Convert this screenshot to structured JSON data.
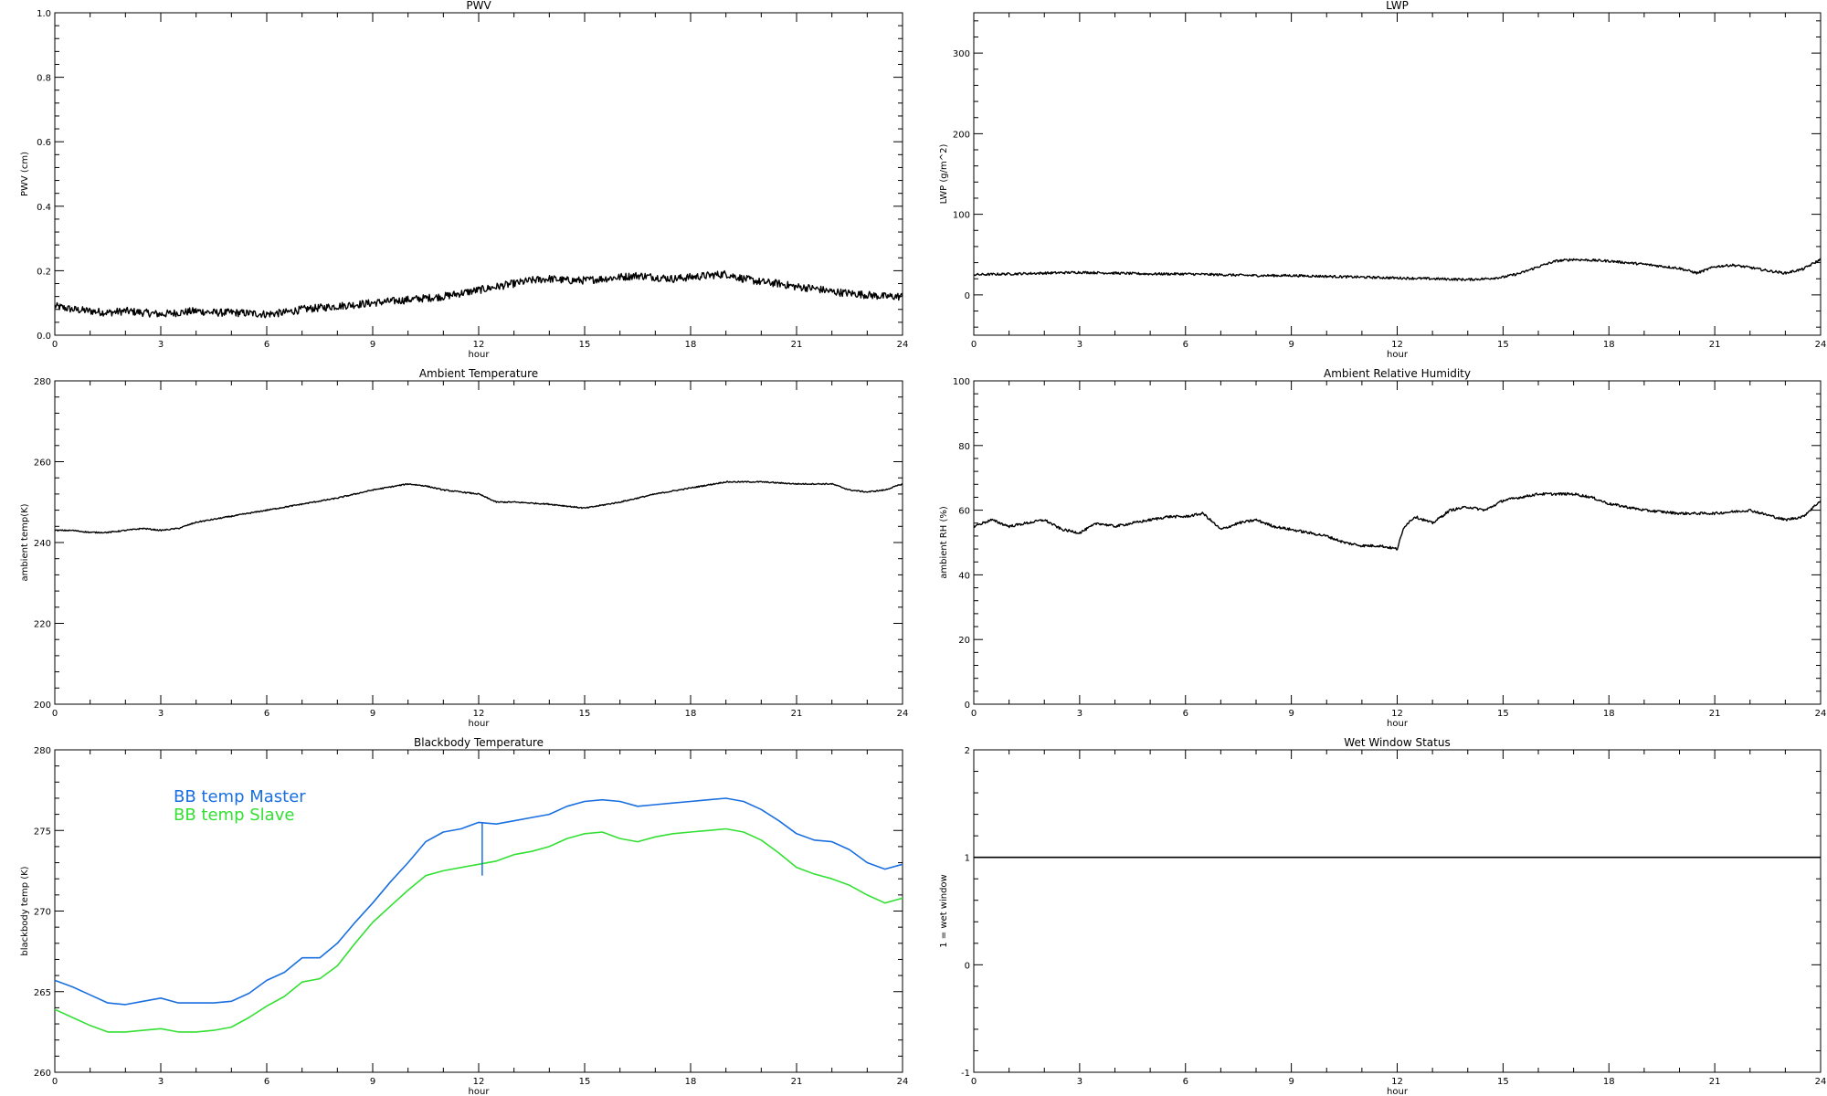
{
  "colors": {
    "axis": "#000000",
    "data": "#000000",
    "master": "#1a6fe0",
    "slave": "#33e033"
  },
  "chart_data": [
    {
      "type": "scatter",
      "title": "PWV",
      "xlabel": "hour",
      "ylabel": "PWV (cm)",
      "xlim": [
        0,
        24
      ],
      "ylim": [
        0,
        1
      ],
      "xticks": [
        0,
        3,
        6,
        9,
        12,
        15,
        18,
        21,
        24
      ],
      "yticks": [
        "0.0",
        "0.2",
        "0.4",
        "0.6",
        "0.8",
        "1.0"
      ],
      "noise": 0.012,
      "series": [
        {
          "color_key": "data",
          "x": [
            0,
            0.5,
            1,
            1.5,
            2,
            2.5,
            3,
            3.5,
            4,
            4.5,
            5,
            5.5,
            6,
            6.5,
            7,
            7.5,
            8,
            8.5,
            9,
            9.5,
            10,
            10.5,
            11,
            11.5,
            12,
            12.5,
            13,
            13.5,
            14,
            14.5,
            15,
            15.5,
            16,
            16.5,
            17,
            17.5,
            18,
            18.5,
            19,
            19.5,
            20,
            20.5,
            21,
            21.5,
            22,
            22.5,
            23,
            23.5,
            24
          ],
          "y": [
            0.09,
            0.08,
            0.075,
            0.07,
            0.075,
            0.07,
            0.065,
            0.07,
            0.075,
            0.07,
            0.07,
            0.068,
            0.065,
            0.07,
            0.08,
            0.085,
            0.09,
            0.095,
            0.1,
            0.105,
            0.11,
            0.115,
            0.12,
            0.13,
            0.14,
            0.15,
            0.16,
            0.17,
            0.175,
            0.17,
            0.17,
            0.175,
            0.18,
            0.185,
            0.18,
            0.175,
            0.18,
            0.185,
            0.19,
            0.175,
            0.165,
            0.16,
            0.15,
            0.145,
            0.135,
            0.13,
            0.125,
            0.12,
            0.12
          ]
        }
      ]
    },
    {
      "type": "scatter",
      "title": "LWP",
      "xlabel": "hour",
      "ylabel": "LWP (g/m^2)",
      "xlim": [
        0,
        24
      ],
      "ylim": [
        -50,
        350
      ],
      "xticks": [
        0,
        3,
        6,
        9,
        12,
        15,
        18,
        21,
        24
      ],
      "yticks": [
        "0",
        "100",
        "200",
        "300"
      ],
      "noise": 1.5,
      "series": [
        {
          "color_key": "data",
          "x": [
            0,
            1,
            2,
            3,
            4,
            5,
            6,
            7,
            8,
            9,
            10,
            11,
            12,
            13,
            14,
            14.5,
            15,
            15.5,
            16,
            16.5,
            17,
            18,
            19,
            20,
            20.5,
            21,
            21.5,
            22,
            22.5,
            23,
            23.5,
            24
          ],
          "y": [
            25,
            26,
            27,
            28,
            27,
            26,
            26,
            25,
            24,
            24,
            23,
            22,
            21,
            20,
            19,
            20,
            22,
            27,
            35,
            42,
            44,
            42,
            38,
            33,
            27,
            35,
            37,
            34,
            30,
            27,
            32,
            44
          ]
        }
      ]
    },
    {
      "type": "line",
      "title": "Ambient Temperature",
      "xlabel": "hour",
      "ylabel": "ambient temp(K)",
      "xlim": [
        0,
        24
      ],
      "ylim": [
        200,
        280
      ],
      "xticks": [
        0,
        3,
        6,
        9,
        12,
        15,
        18,
        21,
        24
      ],
      "yticks": [
        "200",
        "220",
        "240",
        "260",
        "280"
      ],
      "noise": 0.15,
      "series": [
        {
          "color_key": "data",
          "x": [
            0,
            0.5,
            1,
            1.5,
            2,
            2.5,
            3,
            3.5,
            4,
            5,
            6,
            7,
            8,
            9,
            10,
            10.5,
            11,
            11.5,
            12,
            12.5,
            13,
            14,
            15,
            16,
            17,
            18,
            19,
            20,
            21,
            22,
            22.5,
            23,
            23.5,
            24
          ],
          "y": [
            243,
            243,
            242.5,
            242.5,
            243,
            243.5,
            243,
            243.5,
            245,
            246.5,
            248,
            249.5,
            251,
            253,
            254.5,
            254,
            253,
            252.5,
            252,
            250,
            250,
            249.5,
            248.5,
            250,
            252,
            253.5,
            255,
            255,
            254.5,
            254.5,
            253,
            252.5,
            253,
            254.5
          ]
        }
      ]
    },
    {
      "type": "line",
      "title": "Ambient Relative Humidity",
      "xlabel": "hour",
      "ylabel": "ambient RH (%)",
      "xlim": [
        0,
        24
      ],
      "ylim": [
        0,
        100
      ],
      "xticks": [
        0,
        3,
        6,
        9,
        12,
        15,
        18,
        21,
        24
      ],
      "yticks": [
        "0",
        "20",
        "40",
        "60",
        "80",
        "100"
      ],
      "noise": 0.4,
      "series": [
        {
          "color_key": "data",
          "x": [
            0,
            0.5,
            1,
            1.5,
            2,
            2.5,
            3,
            3.5,
            4,
            4.5,
            5,
            5.5,
            6,
            6.5,
            7,
            7.5,
            8,
            8.5,
            9,
            9.5,
            10,
            10.5,
            11,
            11.5,
            12,
            12.2,
            12.5,
            13,
            13.5,
            14,
            14.5,
            15,
            15.5,
            16,
            16.5,
            17,
            17.5,
            18,
            19,
            20,
            21,
            22,
            23,
            23.5,
            24
          ],
          "y": [
            55,
            57,
            55,
            56,
            57,
            54,
            53,
            56,
            55,
            56,
            57,
            58,
            58,
            59,
            54,
            56,
            57,
            55,
            54,
            53,
            52,
            50,
            49,
            49,
            48,
            55,
            58,
            56,
            60,
            61,
            60,
            63,
            64,
            65,
            65,
            65,
            64,
            62,
            60,
            59,
            59,
            60,
            57,
            58,
            63
          ]
        }
      ]
    },
    {
      "type": "line",
      "title": "Blackbody Temperature",
      "xlabel": "hour",
      "ylabel": "blackbody temp (K)",
      "xlim": [
        0,
        24
      ],
      "ylim": [
        260,
        280
      ],
      "xticks": [
        0,
        3,
        6,
        9,
        12,
        15,
        18,
        21,
        24
      ],
      "yticks": [
        "260",
        "265",
        "270",
        "275",
        "280"
      ],
      "noise": 0,
      "legend": "top-left",
      "series": [
        {
          "name": "BB temp Master",
          "color_key": "master",
          "x": [
            0,
            0.5,
            1,
            1.5,
            2,
            2.5,
            3,
            3.5,
            4,
            4.5,
            5,
            5.5,
            6,
            6.5,
            7,
            7.5,
            8,
            8.5,
            9,
            9.5,
            10,
            10.5,
            11,
            11.5,
            12,
            12.5,
            13,
            13.5,
            14,
            14.5,
            15,
            15.5,
            16,
            16.5,
            17,
            17.5,
            18,
            18.5,
            19,
            19.5,
            20,
            20.5,
            21,
            21.5,
            22,
            22.5,
            23,
            23.5,
            24
          ],
          "y": [
            265.7,
            265.3,
            264.8,
            264.3,
            264.2,
            264.4,
            264.6,
            264.3,
            264.3,
            264.3,
            264.4,
            264.9,
            265.7,
            266.2,
            267.1,
            267.1,
            268.0,
            269.3,
            270.5,
            271.8,
            273.0,
            274.3,
            274.9,
            275.1,
            275.5,
            275.4,
            275.6,
            275.8,
            276.0,
            276.5,
            276.8,
            276.9,
            276.8,
            276.5,
            276.6,
            276.7,
            276.8,
            276.9,
            277.0,
            276.8,
            276.3,
            275.6,
            274.8,
            274.4,
            274.3,
            273.8,
            273.0,
            272.6,
            272.9
          ]
        },
        {
          "name": "BB temp Slave",
          "color_key": "slave",
          "x": [
            0,
            0.5,
            1,
            1.5,
            2,
            2.5,
            3,
            3.5,
            4,
            4.5,
            5,
            5.5,
            6,
            6.5,
            7,
            7.5,
            8,
            8.5,
            9,
            9.5,
            10,
            10.5,
            11,
            11.5,
            12,
            12.5,
            13,
            13.5,
            14,
            14.5,
            15,
            15.5,
            16,
            16.5,
            17,
            17.5,
            18,
            18.5,
            19,
            19.5,
            20,
            20.5,
            21,
            21.5,
            22,
            22.5,
            23,
            23.5,
            24
          ],
          "y": [
            263.9,
            263.4,
            262.9,
            262.5,
            262.5,
            262.6,
            262.7,
            262.5,
            262.5,
            262.6,
            262.8,
            263.4,
            264.1,
            264.7,
            265.6,
            265.8,
            266.6,
            268.0,
            269.3,
            270.3,
            271.3,
            272.2,
            272.5,
            272.7,
            272.9,
            273.1,
            273.5,
            273.7,
            274.0,
            274.5,
            274.8,
            274.9,
            274.5,
            274.3,
            274.6,
            274.8,
            274.9,
            275.0,
            275.1,
            274.9,
            274.4,
            273.6,
            272.7,
            272.3,
            272.0,
            271.6,
            271.0,
            270.5,
            270.8
          ]
        }
      ],
      "spike": {
        "x": 12.1,
        "y_from": 272.2,
        "y_to": 275.5,
        "color_key": "master"
      }
    },
    {
      "type": "line",
      "title": "Wet Window Status",
      "xlabel": "hour",
      "ylabel": "1 = wet window",
      "xlim": [
        0,
        24
      ],
      "ylim": [
        -1,
        2
      ],
      "xticks": [
        0,
        3,
        6,
        9,
        12,
        15,
        18,
        21,
        24
      ],
      "yticks": [
        "-1",
        "0",
        "1",
        "2"
      ],
      "noise": 0,
      "series": [
        {
          "color_key": "data",
          "x": [
            0,
            24
          ],
          "y": [
            1,
            1
          ]
        }
      ]
    }
  ]
}
